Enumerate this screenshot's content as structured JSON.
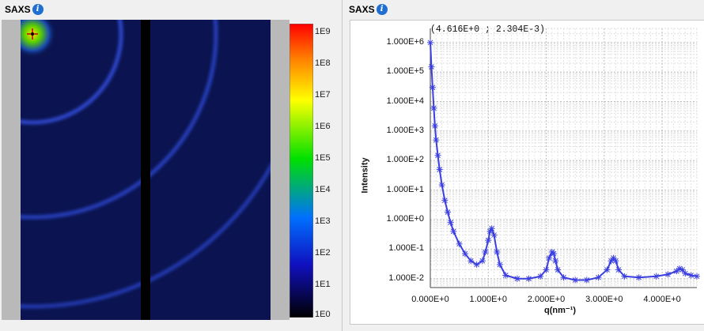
{
  "left_panel": {
    "title": "SAXS",
    "info_icon": "info-icon",
    "colorbar": {
      "ticks": [
        "1E9",
        "1E8",
        "1E7",
        "1E6",
        "1E5",
        "1E4",
        "1E3",
        "1E2",
        "1E1",
        "1E0"
      ]
    }
  },
  "right_panel": {
    "title": "SAXS",
    "info_icon": "info-icon",
    "coordinate_readout": "(4.616E+0 ; 2.304E-3)"
  },
  "chart_data": {
    "type": "line",
    "xlabel": "q(nm⁻¹)",
    "ylabel": "Intensity",
    "yscale": "log",
    "xlim": [
      0,
      4.6
    ],
    "ylim": [
      0.005,
      3000000
    ],
    "x_ticks": [
      "0.000E+0",
      "1.000E+0",
      "2.000E+0",
      "3.000E+0",
      "4.000E+0"
    ],
    "y_ticks": [
      "1.000E+6",
      "1.000E+5",
      "1.000E+4",
      "1.000E+3",
      "1.000E+2",
      "1.000E+1",
      "1.000E+0",
      "1.000E-1",
      "1.000E-2"
    ],
    "grid": true,
    "marker": "star",
    "color": "#3b3fe0",
    "series": [
      {
        "x": [
          0.0,
          0.02,
          0.04,
          0.06,
          0.08,
          0.1,
          0.13,
          0.16,
          0.2,
          0.25,
          0.3,
          0.35,
          0.4,
          0.5,
          0.6,
          0.7,
          0.8,
          0.9,
          0.95,
          1.0,
          1.03,
          1.06,
          1.1,
          1.15,
          1.2,
          1.3,
          1.5,
          1.7,
          1.9,
          2.0,
          2.05,
          2.1,
          2.13,
          2.16,
          2.2,
          2.3,
          2.5,
          2.7,
          2.9,
          3.05,
          3.12,
          3.16,
          3.2,
          3.25,
          3.35,
          3.6,
          3.9,
          4.1,
          4.25,
          4.3,
          4.35,
          4.4,
          4.5,
          4.6
        ],
        "y": [
          1000000,
          150000,
          30000,
          6000,
          1500,
          500,
          150,
          50,
          15,
          4.5,
          1.8,
          0.8,
          0.4,
          0.15,
          0.07,
          0.04,
          0.03,
          0.04,
          0.08,
          0.2,
          0.4,
          0.5,
          0.3,
          0.08,
          0.03,
          0.013,
          0.01,
          0.01,
          0.012,
          0.02,
          0.05,
          0.08,
          0.07,
          0.04,
          0.02,
          0.011,
          0.009,
          0.009,
          0.011,
          0.02,
          0.04,
          0.05,
          0.04,
          0.02,
          0.012,
          0.011,
          0.012,
          0.014,
          0.018,
          0.022,
          0.02,
          0.015,
          0.013,
          0.012
        ]
      }
    ]
  }
}
